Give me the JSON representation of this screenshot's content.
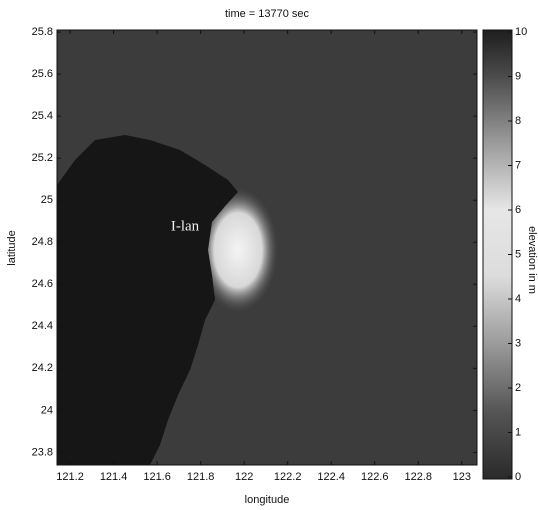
{
  "chart_data": {
    "type": "field-map",
    "title": "time = 13770 sec",
    "x_label": "longitude",
    "y_label": "latitude",
    "annotation": "I-lan",
    "xlim": [
      121.14,
      123.07
    ],
    "xticks": [
      121.2,
      121.4,
      121.6,
      121.8,
      122,
      122.2,
      122.4,
      122.6,
      122.8,
      123
    ],
    "ylim": [
      23.74,
      25.81
    ],
    "yticks": [
      23.8,
      24,
      24.2,
      24.4,
      24.6,
      24.8,
      25,
      25.2,
      25.4,
      25.6,
      25.8
    ],
    "colorbar": {
      "label": "elevation in m",
      "lim": [
        0,
        10
      ],
      "ticks": [
        0,
        1,
        2,
        3,
        4,
        5,
        6,
        7,
        8,
        9,
        10
      ]
    }
  }
}
